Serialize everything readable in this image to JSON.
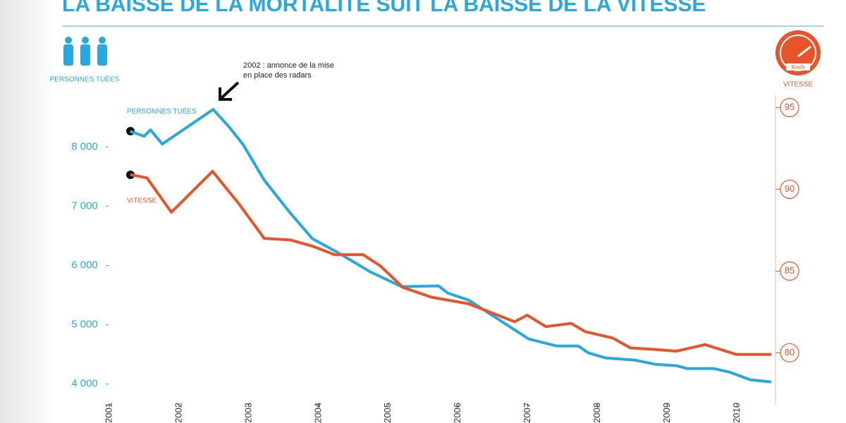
{
  "chart_data": {
    "type": "line",
    "title": "LA BAISSE DE LA MORTALITÉ SUIT LA BAISSE DE LA VITESSE",
    "y_label": "PERSONNES TUÉES",
    "y2_label": "VITESSE",
    "y2_unit": "Km/h",
    "annotation": "2002 : annonce de la mise en place des radars",
    "xlim": [
      2001,
      2010.55
    ],
    "xticks": [
      2001,
      2002,
      2003,
      2004,
      2005,
      2006,
      2007,
      2008,
      2009,
      2010
    ],
    "ylim": [
      3700,
      8800
    ],
    "yticks": [
      {
        "value": 4000,
        "label": "4 000"
      },
      {
        "value": 5000,
        "label": "5 000"
      },
      {
        "value": 6000,
        "label": "6 000"
      },
      {
        "value": 7000,
        "label": "7 000"
      },
      {
        "value": 8000,
        "label": "8 000"
      }
    ],
    "y2lim": [
      77,
      95.5
    ],
    "y2ticks": [
      80,
      85,
      90,
      95
    ],
    "grid": false,
    "series": [
      {
        "name": "PERSONNES TUÉES",
        "color": "#29a8e0",
        "x": [
          2001.3,
          2001.5,
          2001.59,
          2001.76,
          2002.49,
          2002.72,
          2002.92,
          2003.22,
          2003.58,
          2003.91,
          2004.28,
          2004.74,
          2005.19,
          2005.72,
          2005.85,
          2006.15,
          2006.51,
          2007.01,
          2007.41,
          2007.72,
          2007.87,
          2008.12,
          2008.53,
          2008.83,
          2009.13,
          2009.28,
          2009.66,
          2009.89,
          2010.19,
          2010.49
        ],
        "values": [
          8262,
          8179,
          8286,
          8048,
          8631,
          8333,
          8036,
          7440,
          6905,
          6452,
          6214,
          5893,
          5643,
          5655,
          5536,
          5417,
          5143,
          4762,
          4643,
          4643,
          4524,
          4440,
          4405,
          4333,
          4310,
          4262,
          4262,
          4202,
          4071,
          4036
        ]
      },
      {
        "name": "VITESSE",
        "color": "#e8542a",
        "axis": "y2",
        "x": [
          2001.3,
          2001.54,
          2001.89,
          2002.48,
          2002.86,
          2003.22,
          2003.6,
          2003.93,
          2004.23,
          2004.64,
          2004.89,
          2005.21,
          2005.62,
          2006.15,
          2006.51,
          2006.81,
          2006.99,
          2007.26,
          2007.62,
          2007.82,
          2008.22,
          2008.47,
          2008.83,
          2009.13,
          2009.54,
          2009.99,
          2010.49
        ],
        "values": [
          90.9,
          90.7,
          88.6,
          91.1,
          89.1,
          87.0,
          86.9,
          86.5,
          86.0,
          86.0,
          85.3,
          84.0,
          83.4,
          83.0,
          82.4,
          81.9,
          82.3,
          81.6,
          81.8,
          81.3,
          80.9,
          80.3,
          80.2,
          80.1,
          80.5,
          79.9,
          79.9
        ]
      }
    ]
  }
}
